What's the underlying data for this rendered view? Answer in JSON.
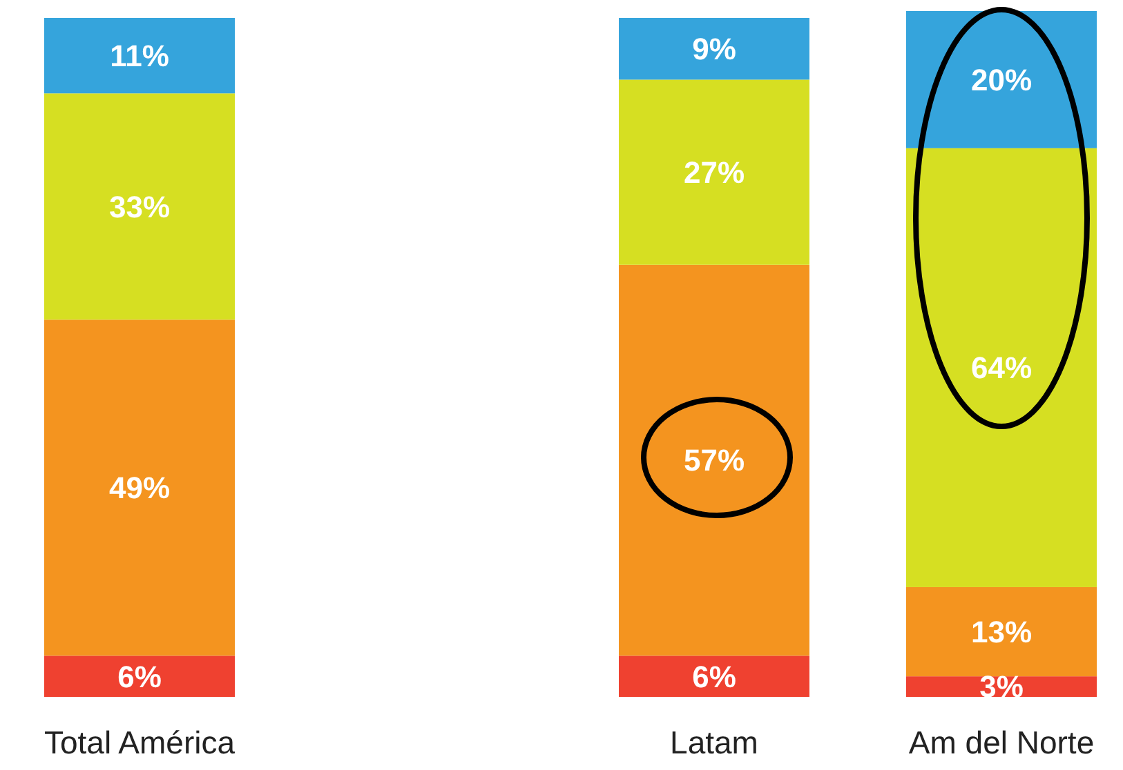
{
  "chart_data": {
    "type": "bar",
    "stacked": true,
    "categories": [
      "Total América",
      null,
      "Latam",
      "Am del Norte"
    ],
    "series": [
      {
        "color": "#ef4130",
        "values": [
          6,
          null,
          6,
          3
        ],
        "value_labels": [
          "6%",
          null,
          "6%",
          "3%"
        ]
      },
      {
        "color": "#f4941f",
        "values": [
          49,
          null,
          57,
          13
        ],
        "value_labels": [
          "49%",
          null,
          "57%",
          "13%"
        ]
      },
      {
        "color": "#d6df22",
        "values": [
          33,
          null,
          27,
          64
        ],
        "value_labels": [
          "33%",
          null,
          "27%",
          "64%"
        ]
      },
      {
        "color": "#35a4dc",
        "values": [
          11,
          null,
          9,
          20
        ],
        "value_labels": [
          "11%",
          null,
          "9%",
          "20%"
        ]
      }
    ],
    "ylim": [
      0,
      100
    ]
  }
}
